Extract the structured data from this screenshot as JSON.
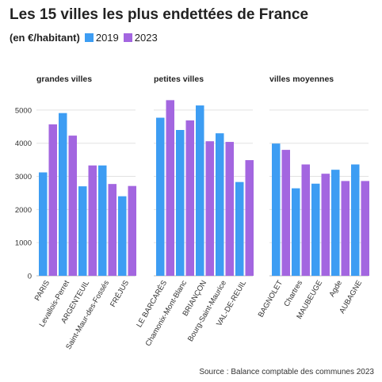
{
  "title": "Les 15 villes les plus endettées de France",
  "subtitle": "(en €/habitant)",
  "source": "Source : Balance comptable des communes 2023",
  "colors": {
    "2019": "#3d9df3",
    "2023": "#a366e0",
    "grid": "#e2e2e2",
    "text": "#333333"
  },
  "chart_data": [
    {
      "type": "bar",
      "title": "grandes villes",
      "categories": [
        "PARIS",
        "Levallois-Perret",
        "ARGENTEUIL",
        "Saint-Maur-des-Fossés",
        "FRÉJUS"
      ],
      "series": [
        {
          "name": "2019",
          "values": [
            3120,
            4910,
            2700,
            3330,
            2400
          ]
        },
        {
          "name": "2023",
          "values": [
            4570,
            4230,
            3330,
            2770,
            2710
          ]
        }
      ],
      "yticks": [
        "0",
        "1000",
        "2000",
        "3000",
        "4000",
        "5000"
      ],
      "ylim": [
        0,
        5500
      ],
      "grid": true
    },
    {
      "type": "bar",
      "title": "petites villes",
      "categories": [
        "LE BARCARÈS",
        "Chamonix-Mont-Blanc",
        "BRIANÇON",
        "Bourg-Saint-Maurice",
        "VAL-DE-REUIL"
      ],
      "series": [
        {
          "name": "2019",
          "values": [
            4770,
            4400,
            5140,
            4300,
            2830
          ]
        },
        {
          "name": "2023",
          "values": [
            5300,
            4690,
            4060,
            4040,
            3490
          ]
        }
      ],
      "ylim": [
        0,
        5500
      ],
      "grid": true
    },
    {
      "type": "bar",
      "title": "villes moyennes",
      "categories": [
        "BAGNOLET",
        "Chartres",
        "MAUBEUGE",
        "Agde",
        "AUBAGNE"
      ],
      "series": [
        {
          "name": "2019",
          "values": [
            3990,
            2640,
            2780,
            3200,
            3360
          ]
        },
        {
          "name": "2023",
          "values": [
            3800,
            3360,
            3080,
            2860,
            2860
          ]
        }
      ],
      "ylim": [
        0,
        5500
      ],
      "grid": true
    }
  ]
}
